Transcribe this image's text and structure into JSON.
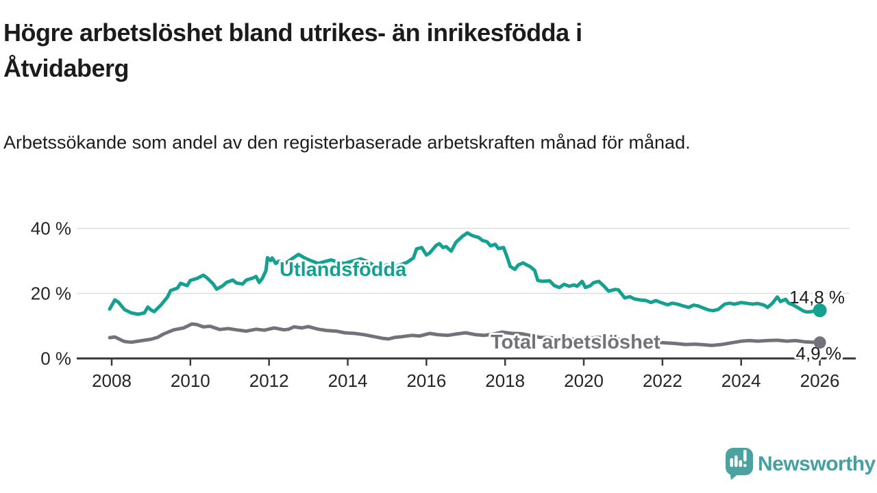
{
  "header": {
    "title": "Högre arbetslöshet bland utrikes- än inrikesfödda i Åtvidaberg",
    "subtitle": "Arbetssökande som andel av den registerbaserade arbetskraften månad för månad."
  },
  "footer": {
    "brand": "Newsworthy"
  },
  "colors": {
    "accent_teal": "#16a08f",
    "neutral_gray": "#75717a",
    "grid": "#dcdcdc",
    "axis": "#3c3c3c",
    "text": "#1b1b1b",
    "logo_teal": "#4aa2a1"
  },
  "chart_data": {
    "type": "line",
    "title": "Högre arbetslöshet bland utrikes- än inrikesfödda i Åtvidaberg",
    "subtitle": "Arbetssökande som andel av den registerbaserade arbetskraften månad för månad.",
    "grid": true,
    "legend_position": "inline-labels",
    "x_axis": {
      "tick_years": [
        2008,
        2010,
        2012,
        2014,
        2016,
        2018,
        2020,
        2022,
        2024,
        2026
      ],
      "range": [
        2007.1,
        2026.8
      ]
    },
    "y_axis": {
      "unit": "%",
      "range": [
        0,
        44
      ],
      "ticks": [
        {
          "value": 0,
          "label": "0 %"
        },
        {
          "value": 20,
          "label": "20 %"
        },
        {
          "value": 40,
          "label": "40 %"
        }
      ]
    },
    "series": [
      {
        "name": "Utlandsfödda",
        "color": "#16a08f",
        "end_label": "14,8 %",
        "end_value": 14.8,
        "points": [
          [
            2007.95,
            15.2
          ],
          [
            2008.08,
            18.0
          ],
          [
            2008.17,
            17.3
          ],
          [
            2008.33,
            15.0
          ],
          [
            2008.5,
            14.0
          ],
          [
            2008.67,
            13.6
          ],
          [
            2008.83,
            14.0
          ],
          [
            2008.92,
            15.8
          ],
          [
            2009.0,
            14.9
          ],
          [
            2009.08,
            14.4
          ],
          [
            2009.25,
            16.4
          ],
          [
            2009.42,
            18.9
          ],
          [
            2009.5,
            20.9
          ],
          [
            2009.67,
            21.6
          ],
          [
            2009.75,
            23.1
          ],
          [
            2009.92,
            22.4
          ],
          [
            2010.0,
            24.0
          ],
          [
            2010.17,
            24.6
          ],
          [
            2010.33,
            25.6
          ],
          [
            2010.42,
            24.8
          ],
          [
            2010.58,
            22.9
          ],
          [
            2010.67,
            21.3
          ],
          [
            2010.83,
            22.4
          ],
          [
            2010.92,
            23.4
          ],
          [
            2011.08,
            24.1
          ],
          [
            2011.17,
            23.2
          ],
          [
            2011.33,
            22.9
          ],
          [
            2011.42,
            24.1
          ],
          [
            2011.58,
            24.7
          ],
          [
            2011.67,
            25.2
          ],
          [
            2011.75,
            23.4
          ],
          [
            2011.83,
            24.6
          ],
          [
            2011.92,
            27.0
          ],
          [
            2011.96,
            31.0
          ],
          [
            2012.04,
            30.1
          ],
          [
            2012.08,
            30.9
          ],
          [
            2012.17,
            29.2
          ],
          [
            2012.25,
            29.9
          ],
          [
            2012.42,
            29.3
          ],
          [
            2012.58,
            30.6
          ],
          [
            2012.75,
            32.0
          ],
          [
            2012.92,
            30.8
          ],
          [
            2013.08,
            30.0
          ],
          [
            2013.25,
            29.2
          ],
          [
            2013.42,
            29.8
          ],
          [
            2013.58,
            30.3
          ],
          [
            2013.75,
            29.6
          ],
          [
            2013.92,
            29.2
          ],
          [
            2014.08,
            29.8
          ],
          [
            2014.33,
            30.6
          ],
          [
            2014.5,
            29.8
          ],
          [
            2014.67,
            28.6
          ],
          [
            2014.83,
            28.0
          ],
          [
            2015.0,
            28.8
          ],
          [
            2015.17,
            28.2
          ],
          [
            2015.33,
            28.8
          ],
          [
            2015.5,
            29.5
          ],
          [
            2015.67,
            30.9
          ],
          [
            2015.75,
            33.7
          ],
          [
            2015.88,
            34.1
          ],
          [
            2016.0,
            31.8
          ],
          [
            2016.08,
            32.4
          ],
          [
            2016.25,
            34.8
          ],
          [
            2016.33,
            35.3
          ],
          [
            2016.42,
            34.1
          ],
          [
            2016.5,
            34.4
          ],
          [
            2016.63,
            33.0
          ],
          [
            2016.75,
            35.7
          ],
          [
            2016.92,
            37.6
          ],
          [
            2017.04,
            38.6
          ],
          [
            2017.13,
            38.0
          ],
          [
            2017.21,
            37.6
          ],
          [
            2017.33,
            37.2
          ],
          [
            2017.42,
            36.3
          ],
          [
            2017.54,
            35.9
          ],
          [
            2017.63,
            34.6
          ],
          [
            2017.75,
            35.1
          ],
          [
            2017.83,
            33.8
          ],
          [
            2017.96,
            34.1
          ],
          [
            2018.04,
            31.6
          ],
          [
            2018.13,
            28.3
          ],
          [
            2018.25,
            27.4
          ],
          [
            2018.33,
            28.7
          ],
          [
            2018.46,
            29.4
          ],
          [
            2018.54,
            28.8
          ],
          [
            2018.63,
            28.3
          ],
          [
            2018.75,
            27.1
          ],
          [
            2018.83,
            24.0
          ],
          [
            2018.96,
            23.7
          ],
          [
            2019.13,
            23.9
          ],
          [
            2019.25,
            22.4
          ],
          [
            2019.38,
            21.8
          ],
          [
            2019.5,
            22.8
          ],
          [
            2019.63,
            22.2
          ],
          [
            2019.75,
            22.6
          ],
          [
            2019.83,
            22.2
          ],
          [
            2019.96,
            23.7
          ],
          [
            2020.04,
            21.8
          ],
          [
            2020.17,
            22.4
          ],
          [
            2020.25,
            23.3
          ],
          [
            2020.38,
            23.7
          ],
          [
            2020.5,
            22.4
          ],
          [
            2020.63,
            20.7
          ],
          [
            2020.79,
            21.2
          ],
          [
            2020.88,
            21.1
          ],
          [
            2021.04,
            18.6
          ],
          [
            2021.17,
            19.0
          ],
          [
            2021.29,
            18.3
          ],
          [
            2021.42,
            18.0
          ],
          [
            2021.58,
            17.8
          ],
          [
            2021.71,
            17.2
          ],
          [
            2021.83,
            17.8
          ],
          [
            2021.96,
            17.2
          ],
          [
            2022.13,
            16.5
          ],
          [
            2022.25,
            17.0
          ],
          [
            2022.38,
            16.7
          ],
          [
            2022.54,
            16.1
          ],
          [
            2022.67,
            15.7
          ],
          [
            2022.79,
            16.4
          ],
          [
            2022.92,
            16.1
          ],
          [
            2023.04,
            15.5
          ],
          [
            2023.17,
            14.9
          ],
          [
            2023.29,
            14.7
          ],
          [
            2023.42,
            15.1
          ],
          [
            2023.58,
            16.7
          ],
          [
            2023.71,
            17.0
          ],
          [
            2023.83,
            16.7
          ],
          [
            2024.0,
            17.2
          ],
          [
            2024.13,
            17.0
          ],
          [
            2024.29,
            16.7
          ],
          [
            2024.42,
            16.9
          ],
          [
            2024.58,
            16.4
          ],
          [
            2024.67,
            15.7
          ],
          [
            2024.79,
            16.9
          ],
          [
            2024.92,
            18.9
          ],
          [
            2025.0,
            17.5
          ],
          [
            2025.13,
            18.2
          ],
          [
            2025.21,
            17.0
          ],
          [
            2025.33,
            16.4
          ],
          [
            2025.46,
            15.5
          ],
          [
            2025.58,
            14.6
          ],
          [
            2025.67,
            14.3
          ],
          [
            2025.79,
            14.4
          ],
          [
            2025.88,
            14.7
          ],
          [
            2026.0,
            14.8
          ]
        ]
      },
      {
        "name": "Total arbetslöshet",
        "color": "#75717a",
        "end_label": "4,9 %",
        "end_value": 4.9,
        "points": [
          [
            2007.95,
            6.4
          ],
          [
            2008.08,
            6.6
          ],
          [
            2008.25,
            5.6
          ],
          [
            2008.33,
            5.2
          ],
          [
            2008.5,
            5.0
          ],
          [
            2008.67,
            5.3
          ],
          [
            2008.83,
            5.6
          ],
          [
            2009.0,
            5.9
          ],
          [
            2009.17,
            6.5
          ],
          [
            2009.33,
            7.6
          ],
          [
            2009.58,
            8.8
          ],
          [
            2009.83,
            9.4
          ],
          [
            2010.04,
            10.6
          ],
          [
            2010.17,
            10.4
          ],
          [
            2010.33,
            9.7
          ],
          [
            2010.5,
            9.9
          ],
          [
            2010.75,
            8.9
          ],
          [
            2010.96,
            9.2
          ],
          [
            2011.17,
            8.8
          ],
          [
            2011.42,
            8.4
          ],
          [
            2011.67,
            9.0
          ],
          [
            2011.88,
            8.7
          ],
          [
            2012.13,
            9.4
          ],
          [
            2012.38,
            8.8
          ],
          [
            2012.5,
            9.0
          ],
          [
            2012.63,
            9.7
          ],
          [
            2012.83,
            9.4
          ],
          [
            2013.0,
            9.8
          ],
          [
            2013.25,
            9.0
          ],
          [
            2013.46,
            8.6
          ],
          [
            2013.71,
            8.4
          ],
          [
            2013.92,
            7.9
          ],
          [
            2014.17,
            7.7
          ],
          [
            2014.42,
            7.3
          ],
          [
            2014.63,
            6.8
          ],
          [
            2014.88,
            6.2
          ],
          [
            2015.04,
            6.0
          ],
          [
            2015.21,
            6.5
          ],
          [
            2015.38,
            6.7
          ],
          [
            2015.63,
            7.1
          ],
          [
            2015.83,
            6.9
          ],
          [
            2016.08,
            7.7
          ],
          [
            2016.29,
            7.3
          ],
          [
            2016.54,
            7.1
          ],
          [
            2016.75,
            7.5
          ],
          [
            2017.0,
            7.9
          ],
          [
            2017.25,
            7.3
          ],
          [
            2017.46,
            7.1
          ],
          [
            2017.71,
            7.5
          ],
          [
            2017.92,
            8.1
          ],
          [
            2018.17,
            7.7
          ],
          [
            2018.42,
            7.6
          ],
          [
            2018.63,
            7.1
          ],
          [
            2018.88,
            6.5
          ],
          [
            2019.08,
            6.4
          ],
          [
            2019.33,
            6.3
          ],
          [
            2019.58,
            6.1
          ],
          [
            2019.83,
            5.9
          ],
          [
            2020.08,
            6.0
          ],
          [
            2020.33,
            6.5
          ],
          [
            2020.58,
            6.3
          ],
          [
            2020.83,
            6.0
          ],
          [
            2021.08,
            5.7
          ],
          [
            2021.33,
            5.4
          ],
          [
            2021.58,
            5.2
          ],
          [
            2021.83,
            5.0
          ],
          [
            2022.08,
            4.8
          ],
          [
            2022.33,
            4.6
          ],
          [
            2022.58,
            4.3
          ],
          [
            2022.83,
            4.4
          ],
          [
            2023.08,
            4.2
          ],
          [
            2023.25,
            4.0
          ],
          [
            2023.5,
            4.3
          ],
          [
            2023.75,
            4.8
          ],
          [
            2024.0,
            5.3
          ],
          [
            2024.21,
            5.5
          ],
          [
            2024.42,
            5.3
          ],
          [
            2024.67,
            5.5
          ],
          [
            2024.92,
            5.6
          ],
          [
            2025.17,
            5.3
          ],
          [
            2025.38,
            5.5
          ],
          [
            2025.63,
            5.1
          ],
          [
            2025.79,
            5.0
          ],
          [
            2026.0,
            4.9
          ]
        ]
      }
    ]
  }
}
